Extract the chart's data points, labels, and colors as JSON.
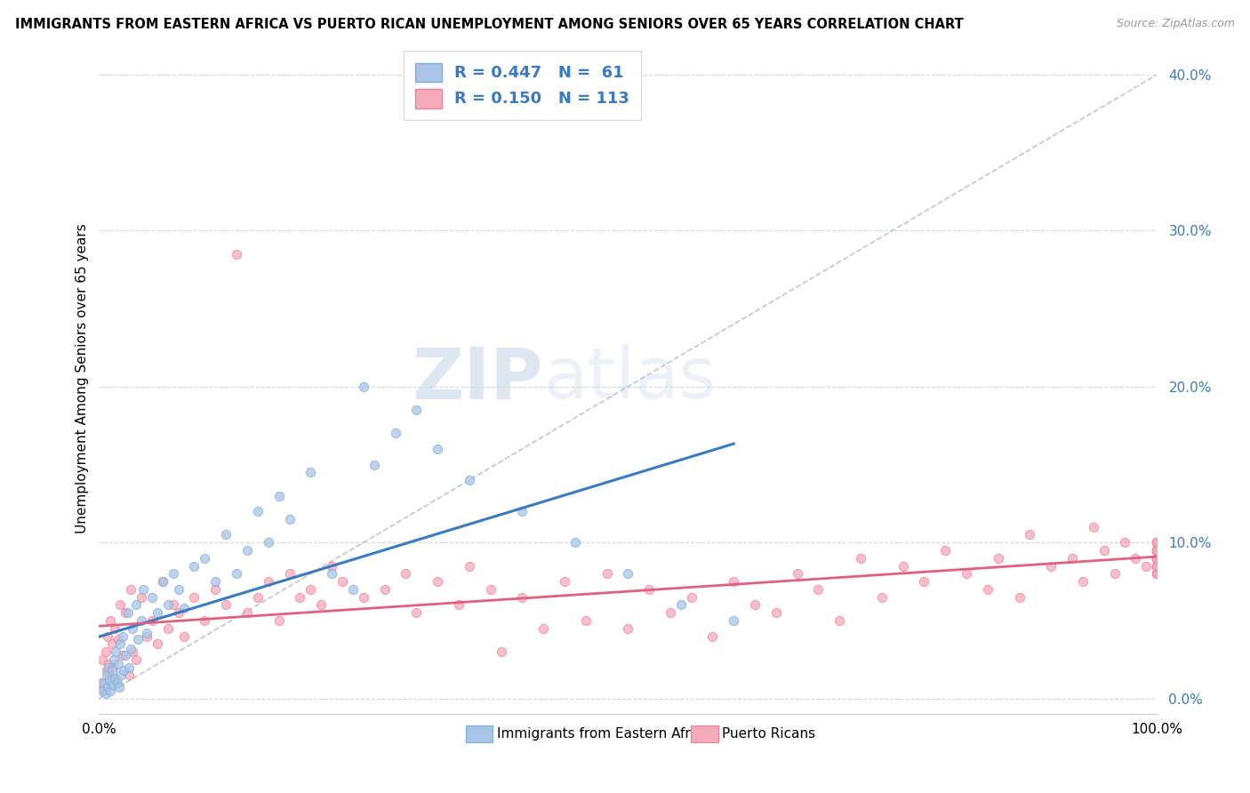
{
  "title": "IMMIGRANTS FROM EASTERN AFRICA VS PUERTO RICAN UNEMPLOYMENT AMONG SENIORS OVER 65 YEARS CORRELATION CHART",
  "source": "Source: ZipAtlas.com",
  "ylabel": "Unemployment Among Seniors over 65 years",
  "ytick_values": [
    0.0,
    10.0,
    20.0,
    30.0,
    40.0
  ],
  "xlim": [
    0.0,
    100.0
  ],
  "ylim": [
    -1.0,
    42.0
  ],
  "watermark_zip": "ZIP",
  "watermark_atlas": "atlas",
  "blue_color": "#7bafd4",
  "pink_color": "#f08098",
  "blue_fill": "#aac4e8",
  "pink_fill": "#f4aaba",
  "blue_line_color": "#3a7abf",
  "pink_line_color": "#e06080",
  "diag_line_color": "#b0b8c8",
  "blue_R": 0.447,
  "blue_N": 61,
  "pink_R": 0.15,
  "pink_N": 113,
  "blue_x": [
    0.3,
    0.5,
    0.6,
    0.7,
    0.8,
    0.9,
    1.0,
    1.1,
    1.2,
    1.3,
    1.4,
    1.5,
    1.6,
    1.7,
    1.8,
    1.9,
    2.0,
    2.1,
    2.2,
    2.3,
    2.5,
    2.7,
    2.8,
    3.0,
    3.2,
    3.5,
    3.7,
    4.0,
    4.2,
    4.5,
    5.0,
    5.5,
    6.0,
    6.5,
    7.0,
    7.5,
    8.0,
    9.0,
    10.0,
    11.0,
    12.0,
    13.0,
    14.0,
    15.0,
    16.0,
    17.0,
    18.0,
    20.0,
    22.0,
    24.0,
    25.0,
    26.0,
    28.0,
    30.0,
    32.0,
    35.0,
    40.0,
    45.0,
    50.0,
    55.0,
    60.0
  ],
  "blue_y": [
    0.5,
    1.0,
    0.3,
    1.5,
    0.8,
    2.0,
    1.2,
    0.5,
    1.8,
    0.9,
    2.5,
    1.3,
    3.0,
    1.0,
    2.2,
    0.7,
    3.5,
    1.5,
    4.0,
    1.8,
    2.8,
    5.5,
    2.0,
    3.2,
    4.5,
    6.0,
    3.8,
    5.0,
    7.0,
    4.2,
    6.5,
    5.5,
    7.5,
    6.0,
    8.0,
    7.0,
    5.8,
    8.5,
    9.0,
    7.5,
    10.5,
    8.0,
    9.5,
    12.0,
    10.0,
    13.0,
    11.5,
    14.5,
    8.0,
    7.0,
    20.0,
    15.0,
    17.0,
    18.5,
    16.0,
    14.0,
    12.0,
    10.0,
    8.0,
    6.0,
    5.0
  ],
  "pink_x": [
    0.2,
    0.3,
    0.5,
    0.6,
    0.7,
    0.8,
    0.9,
    1.0,
    1.1,
    1.2,
    1.3,
    1.5,
    1.6,
    1.8,
    2.0,
    2.2,
    2.5,
    2.8,
    3.0,
    3.2,
    3.5,
    4.0,
    4.5,
    5.0,
    5.5,
    6.0,
    6.5,
    7.0,
    7.5,
    8.0,
    9.0,
    10.0,
    11.0,
    12.0,
    13.0,
    14.0,
    15.0,
    16.0,
    17.0,
    18.0,
    19.0,
    20.0,
    21.0,
    22.0,
    23.0,
    25.0,
    27.0,
    29.0,
    30.0,
    32.0,
    34.0,
    35.0,
    37.0,
    38.0,
    40.0,
    42.0,
    44.0,
    46.0,
    48.0,
    50.0,
    52.0,
    54.0,
    56.0,
    58.0,
    60.0,
    62.0,
    64.0,
    66.0,
    68.0,
    70.0,
    72.0,
    74.0,
    76.0,
    78.0,
    80.0,
    82.0,
    84.0,
    85.0,
    87.0,
    88.0,
    90.0,
    92.0,
    93.0,
    94.0,
    95.0,
    96.0,
    97.0,
    98.0,
    99.0,
    100.0,
    100.0,
    100.0,
    100.0,
    100.0,
    100.0,
    100.0,
    100.0,
    100.0,
    100.0,
    100.0,
    100.0,
    100.0,
    100.0,
    100.0,
    100.0,
    100.0,
    100.0,
    100.0,
    100.0,
    100.0,
    100.0,
    100.0,
    100.0
  ],
  "pink_y": [
    1.0,
    2.5,
    0.5,
    3.0,
    1.8,
    4.0,
    2.2,
    1.5,
    5.0,
    3.5,
    2.0,
    4.5,
    1.2,
    3.8,
    6.0,
    2.8,
    5.5,
    1.5,
    7.0,
    3.0,
    2.5,
    6.5,
    4.0,
    5.0,
    3.5,
    7.5,
    4.5,
    6.0,
    5.5,
    4.0,
    6.5,
    5.0,
    7.0,
    6.0,
    28.5,
    5.5,
    6.5,
    7.5,
    5.0,
    8.0,
    6.5,
    7.0,
    6.0,
    8.5,
    7.5,
    6.5,
    7.0,
    8.0,
    5.5,
    7.5,
    6.0,
    8.5,
    7.0,
    3.0,
    6.5,
    4.5,
    7.5,
    5.0,
    8.0,
    4.5,
    7.0,
    5.5,
    6.5,
    4.0,
    7.5,
    6.0,
    5.5,
    8.0,
    7.0,
    5.0,
    9.0,
    6.5,
    8.5,
    7.5,
    9.5,
    8.0,
    7.0,
    9.0,
    6.5,
    10.5,
    8.5,
    9.0,
    7.5,
    11.0,
    9.5,
    8.0,
    10.0,
    9.0,
    8.5,
    9.5,
    9.0,
    9.5,
    8.0,
    9.5,
    10.0,
    9.0,
    8.5,
    9.0,
    9.5,
    8.0,
    10.0,
    9.5,
    8.5,
    9.0,
    10.0,
    9.5,
    8.0,
    9.0,
    9.5,
    10.0,
    8.5,
    9.0,
    9.5
  ]
}
